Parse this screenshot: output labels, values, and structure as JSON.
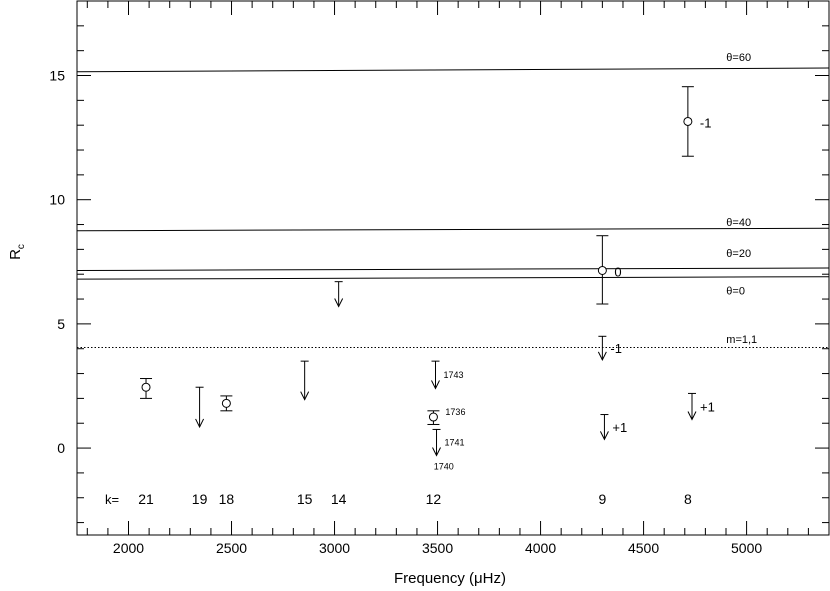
{
  "chart_data": {
    "type": "scatter",
    "xlabel": "Frequency (μHz)",
    "ylabel": "R",
    "ylabel_sub": "c",
    "xlim": [
      1750,
      5400
    ],
    "ylim": [
      -3.5,
      18
    ],
    "xticks_major": [
      2000,
      2500,
      3000,
      3500,
      4000,
      4500,
      5000
    ],
    "xticks_minor": [
      1800,
      1900,
      2100,
      2200,
      2300,
      2400,
      2600,
      2700,
      2800,
      2900,
      3100,
      3200,
      3300,
      3400,
      3600,
      3700,
      3800,
      3900,
      4100,
      4200,
      4300,
      4400,
      4600,
      4700,
      4800,
      4900,
      5100,
      5200,
      5300
    ],
    "yticks_major": [
      0,
      5,
      10,
      15
    ],
    "yticks_minor": [
      -3,
      -2,
      -1,
      1,
      2,
      3,
      4,
      6,
      7,
      8,
      9,
      11,
      12,
      13,
      14,
      16,
      17
    ],
    "reference_lines": [
      {
        "label": "θ=60",
        "y_start": 15.15,
        "y_end": 15.3,
        "style": "solid",
        "label_x": 4950,
        "label_y": 15.75
      },
      {
        "label": "θ=40",
        "y_start": 8.75,
        "y_end": 8.85,
        "style": "solid",
        "label_x": 4950,
        "label_y": 9.1
      },
      {
        "label": "θ=20",
        "y_start": 7.15,
        "y_end": 7.25,
        "style": "solid",
        "label_x": 4950,
        "label_y": 7.85
      },
      {
        "label": "θ=0",
        "y_start": 6.8,
        "y_end": 6.9,
        "style": "solid",
        "label_x": 4950,
        "label_y": 6.35
      },
      {
        "label": "m=1,1",
        "y_start": 4.05,
        "y_end": 4.05,
        "style": "dotted",
        "label_x": 4950,
        "label_y": 4.4
      }
    ],
    "measurements": [
      {
        "x": 2085,
        "y": 2.45,
        "y_low": 2.0,
        "y_high": 2.8,
        "label": ""
      },
      {
        "x": 2475,
        "y": 1.8,
        "y_low": 1.5,
        "y_high": 2.1,
        "label": ""
      },
      {
        "x": 3480,
        "y": 1.25,
        "y_low": 0.95,
        "y_high": 1.5,
        "label": "1736"
      },
      {
        "x": 4300,
        "y": 7.15,
        "y_low": 5.8,
        "y_high": 8.55,
        "label": "0"
      },
      {
        "x": 4715,
        "y": 13.15,
        "y_low": 11.75,
        "y_high": 14.55,
        "label": "-1"
      }
    ],
    "upper_limits": [
      {
        "x": 2345,
        "y_from": 2.45,
        "y_to": 0.85,
        "label": ""
      },
      {
        "x": 2855,
        "y_from": 3.5,
        "y_to": 1.95,
        "label": ""
      },
      {
        "x": 3020,
        "y_from": 6.7,
        "y_to": 5.7,
        "label": ""
      },
      {
        "x": 3490,
        "y_from": 3.5,
        "y_to": 2.4,
        "label": "1743"
      },
      {
        "x": 3495,
        "y_from": 0.75,
        "y_to": -0.3,
        "label": "1741"
      },
      {
        "x": 4300,
        "y_from": 4.5,
        "y_to": 3.55,
        "label": "-1"
      },
      {
        "x": 4310,
        "y_from": 1.35,
        "y_to": 0.35,
        "label": "+1"
      },
      {
        "x": 4735,
        "y_from": 2.2,
        "y_to": 1.15,
        "label": "+1"
      }
    ],
    "extra_labels": [
      {
        "text": "1740",
        "x": 3540,
        "y": -0.75
      }
    ],
    "k_label": "k=",
    "k_values": [
      {
        "k": "21",
        "x": 2085
      },
      {
        "k": "19",
        "x": 2345
      },
      {
        "k": "18",
        "x": 2475
      },
      {
        "k": "15",
        "x": 2855
      },
      {
        "k": "14",
        "x": 3020
      },
      {
        "k": "12",
        "x": 3480
      },
      {
        "k": "9",
        "x": 4300
      },
      {
        "k": "8",
        "x": 4715
      }
    ],
    "k_row_y": -2.05
  }
}
